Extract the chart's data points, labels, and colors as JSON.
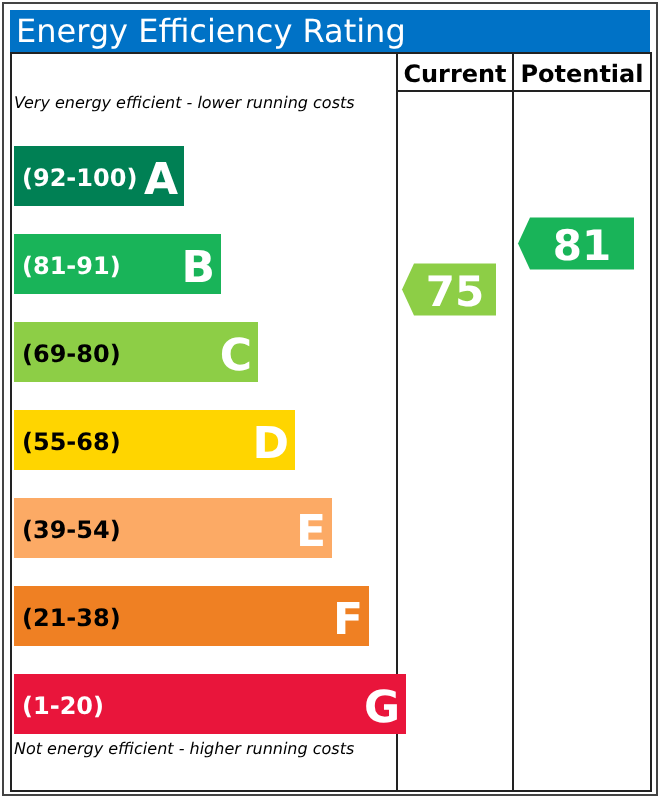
{
  "chart_data": {
    "type": "other",
    "title": "Energy Efficiency Rating",
    "categories": [
      "(92-100)",
      "(81-91)",
      "(69-80)",
      "(55-68)",
      "(39-54)",
      "(21-38)",
      "(1-20)"
    ],
    "colors": [
      "#008054",
      "#19b459",
      "#8dce46",
      "#ffd500",
      "#fcaa65",
      "#ef8023",
      "#e9153b"
    ],
    "value_labels": [
      "A",
      "B",
      "C",
      "D",
      "E",
      "F",
      "G"
    ],
    "data_labels": true,
    "series": [
      {
        "color": "#8dce46",
        "values": [
          null,
          null,
          75,
          null,
          null,
          null,
          null
        ]
      },
      {
        "color": "#19b459",
        "values": [
          null,
          81,
          null,
          null,
          null,
          null,
          null
        ]
      }
    ],
    "annotations": [
      "Very energy efficient - lower running costs",
      "Not energy efficient - higher running costs",
      "Current",
      "Potential"
    ]
  }
}
